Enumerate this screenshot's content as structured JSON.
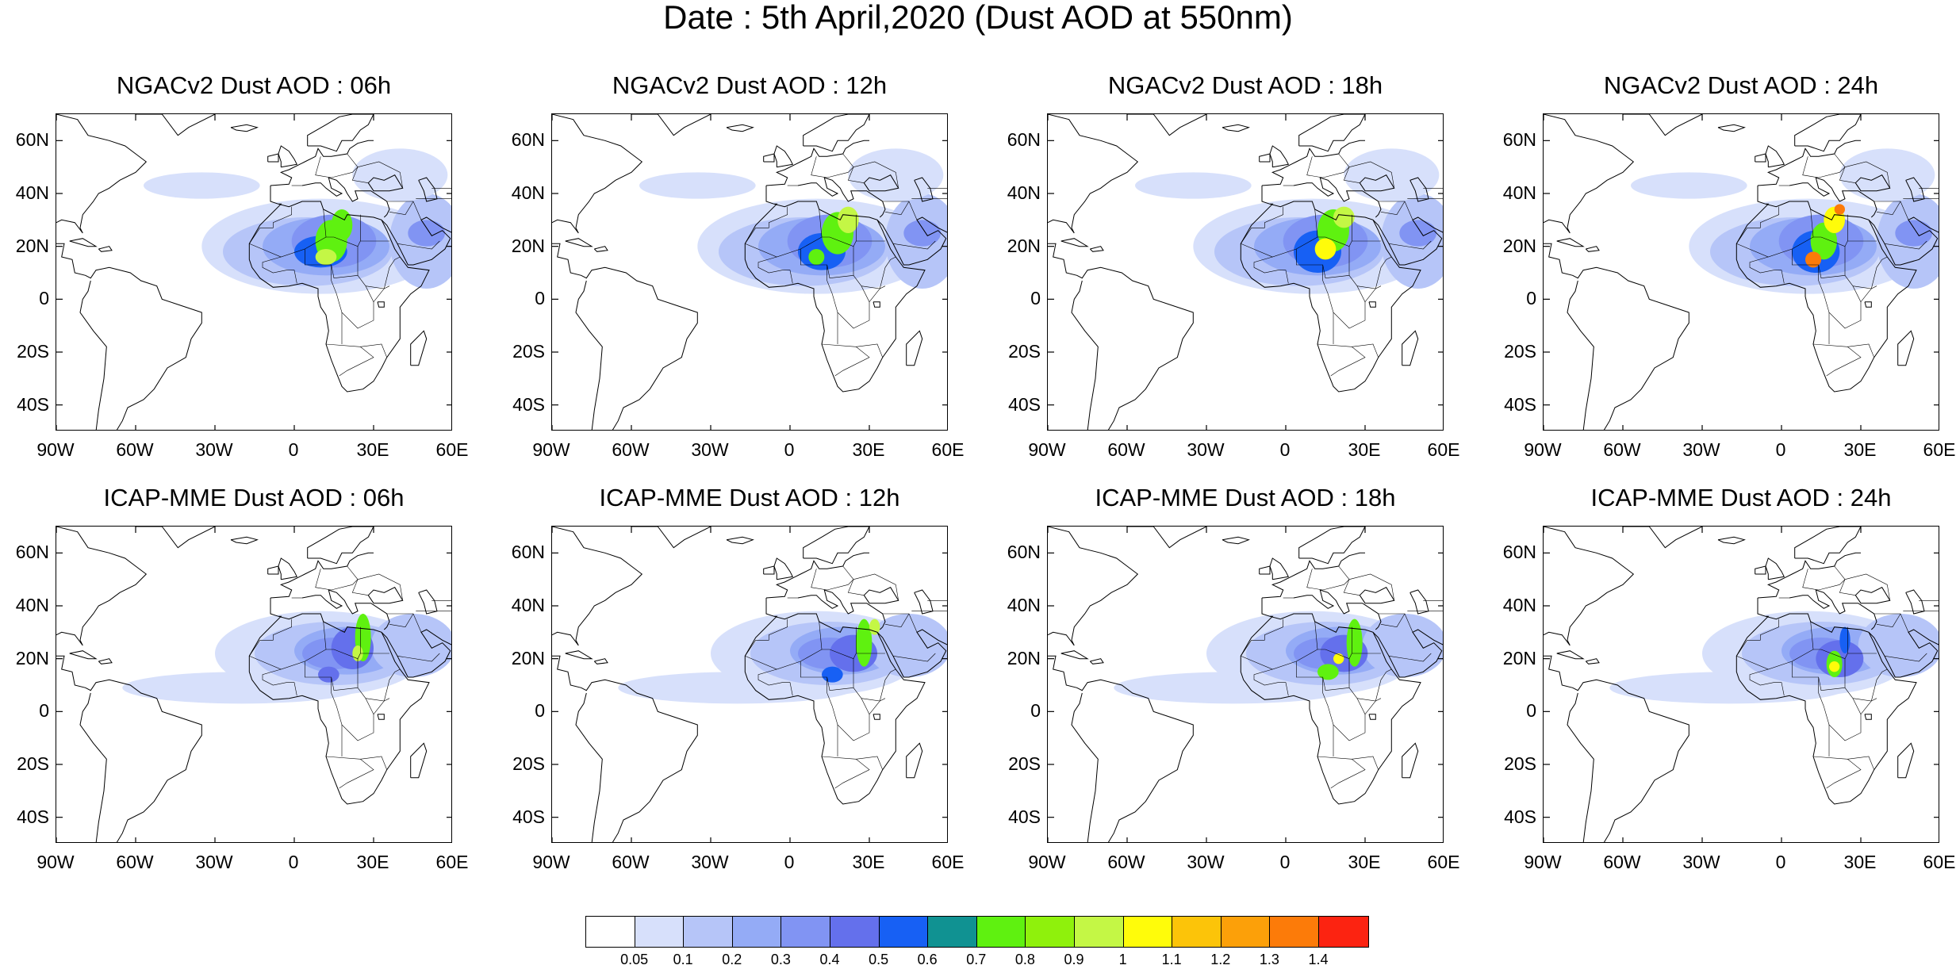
{
  "title": "Date : 5th April,2020 (Dust AOD at 550nm)",
  "colors": {
    "land_outline": "#000000",
    "aod_levels": [
      "#ffffff",
      "#d7e0fb",
      "#b6c5f8",
      "#94abf6",
      "#8194f3",
      "#6470ec",
      "#1760f4",
      "#109292",
      "#5ff110",
      "#8ff10c",
      "#c4f745",
      "#fffc0a",
      "#fcc409",
      "#fca009",
      "#fc7b09",
      "#fc2311"
    ]
  },
  "axes": {
    "lon_labels": [
      "90W",
      "60W",
      "30W",
      "0",
      "30E",
      "60E"
    ],
    "lat_labels": [
      "60N",
      "40N",
      "20N",
      "0",
      "20S",
      "40S"
    ]
  },
  "panels": [
    {
      "title": "NGACv2 Dust AOD : 06h"
    },
    {
      "title": "NGACv2 Dust AOD : 12h"
    },
    {
      "title": "NGACv2 Dust AOD : 18h"
    },
    {
      "title": "NGACv2 Dust AOD : 24h"
    },
    {
      "title": "ICAP-MME Dust AOD : 06h"
    },
    {
      "title": "ICAP-MME Dust AOD : 12h"
    },
    {
      "title": "ICAP-MME Dust AOD : 18h"
    },
    {
      "title": "ICAP-MME Dust AOD : 24h"
    }
  ],
  "colorbar": {
    "labels": [
      "0.05",
      "0.1",
      "0.2",
      "0.3",
      "0.4",
      "0.5",
      "0.6",
      "0.7",
      "0.8",
      "0.9",
      "1",
      "1.1",
      "1.2",
      "1.3",
      "1.4"
    ]
  }
}
